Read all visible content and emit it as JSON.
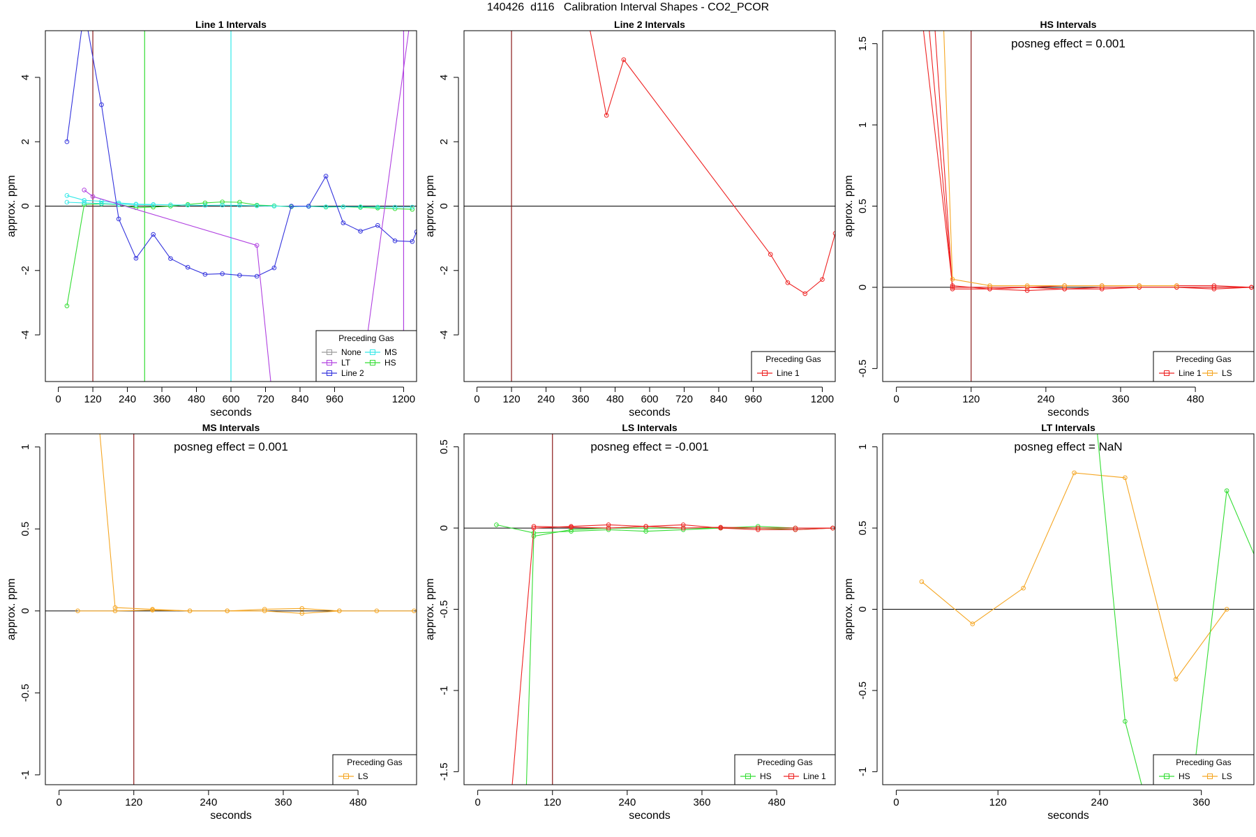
{
  "page": {
    "title": "140426  d116   Calibration Interval Shapes - CO2_PCOR"
  },
  "colors": {
    "None": "#999999",
    "MS": "#33e8e8",
    "LT": "#b040e0",
    "HS": "#33dd33",
    "Line 2": "#3333dd",
    "Line 1": "#ee2222",
    "LS": "#f5a623",
    "ref_line": "#8b1a1a"
  },
  "chart_data": [
    {
      "type": "line",
      "title": "Line 1 Intervals",
      "xlabel": "seconds",
      "ylabel": "approx. ppm",
      "xlim": [
        -45,
        1245
      ],
      "ylim": [
        -5.45,
        5.45
      ],
      "xticks": [
        0,
        120,
        240,
        360,
        480,
        600,
        720,
        840,
        960,
        1200
      ],
      "yticks": [
        -4,
        -2,
        0,
        2,
        4
      ],
      "vlines": [
        {
          "x": 120,
          "color": "#8b1a1a"
        },
        {
          "x": 300,
          "color": "#33dd33"
        },
        {
          "x": 600,
          "color": "#33e8e8"
        },
        {
          "x": 1200,
          "color": "#b040e0"
        }
      ],
      "annotation": "",
      "legend": {
        "title": "Preceding Gas",
        "position": "bottom-right",
        "columns": 2,
        "entries": [
          "None",
          "MS",
          "LT",
          "HS",
          "Line 2"
        ]
      },
      "series": [
        {
          "name": "HS",
          "color": "#33dd33",
          "x": [
            30,
            90,
            150,
            210,
            270,
            330,
            390,
            450,
            510,
            570,
            630,
            690,
            750,
            810,
            870,
            930,
            990,
            1050,
            1110,
            1170,
            1230
          ],
          "y": [
            -3.1,
            0.05,
            0.07,
            0.05,
            -0.05,
            -0.03,
            0.0,
            0.05,
            0.1,
            0.13,
            0.12,
            0.03,
            0.01,
            -0.02,
            0.0,
            -0.03,
            -0.02,
            -0.04,
            -0.06,
            -0.08,
            -0.1
          ]
        },
        {
          "name": "MS",
          "color": "#33e8e8",
          "x": [
            30,
            90,
            150,
            210,
            270,
            330,
            390,
            450,
            510,
            570,
            630,
            690,
            750,
            810,
            870,
            930,
            990,
            1050,
            1110,
            1170,
            1230
          ],
          "y": [
            0.33,
            0.18,
            0.15,
            0.1,
            0.06,
            0.05,
            0.04,
            0.03,
            0.02,
            0.03,
            0.02,
            0.01,
            0.0,
            -0.01,
            -0.01,
            -0.02,
            -0.02,
            -0.02,
            -0.03,
            -0.03,
            -0.03
          ]
        },
        {
          "name": "MS",
          "color": "#33e8e8",
          "x": [
            30,
            90,
            150,
            210,
            270,
            330
          ],
          "y": [
            0.12,
            0.1,
            0.08,
            0.06,
            0.05,
            0.04
          ]
        },
        {
          "name": "Line 2",
          "color": "#3333dd",
          "x": [
            30,
            90,
            150,
            210,
            270,
            330,
            390,
            450,
            510,
            570,
            630,
            690,
            750,
            810,
            870,
            930,
            990,
            1050,
            1110,
            1170,
            1230,
            1245
          ],
          "y": [
            2.0,
            6.1,
            3.15,
            -0.4,
            -1.62,
            -0.88,
            -1.63,
            -1.9,
            -2.12,
            -2.1,
            -2.15,
            -2.18,
            -1.92,
            0.0,
            0.0,
            0.93,
            -0.52,
            -0.78,
            -0.6,
            -1.08,
            -1.1,
            -0.8
          ]
        },
        {
          "name": "LT",
          "color": "#b040e0",
          "x": [
            90,
            120,
            690,
            740,
            1050,
            1220
          ],
          "y": [
            0.5,
            0.3,
            -1.22,
            -5.6,
            -5.6,
            5.6
          ]
        },
        {
          "name": "LT",
          "color": "#b040e0",
          "x": [
            60,
            90,
            100
          ],
          "y": [
            5.6,
            5.6,
            5.6
          ]
        }
      ]
    },
    {
      "type": "line",
      "title": "Line 2 Intervals",
      "xlabel": "seconds",
      "ylabel": "approx. ppm",
      "xlim": [
        -45,
        1245
      ],
      "ylim": [
        -5.45,
        5.45
      ],
      "xticks": [
        0,
        120,
        240,
        360,
        480,
        600,
        720,
        840,
        960,
        1200
      ],
      "yticks": [
        -4,
        -2,
        0,
        2,
        4
      ],
      "vlines": [
        {
          "x": 120,
          "color": "#8b1a1a"
        }
      ],
      "annotation": "",
      "legend": {
        "title": "Preceding Gas",
        "position": "bottom-right",
        "columns": 1,
        "entries": [
          "Line 1"
        ]
      },
      "series": [
        {
          "name": "Line 1",
          "color": "#ee2222",
          "x": [
            390,
            450,
            510,
            1020,
            1080,
            1140,
            1200,
            1245
          ],
          "y": [
            5.6,
            2.82,
            4.55,
            -1.5,
            -2.38,
            -2.72,
            -2.28,
            -0.85
          ]
        }
      ]
    },
    {
      "type": "line",
      "title": "HS Intervals",
      "xlabel": "seconds",
      "ylabel": "approx. ppm",
      "xlim": [
        -22,
        574
      ],
      "ylim": [
        -0.58,
        1.58
      ],
      "xticks": [
        0,
        120,
        240,
        360,
        480
      ],
      "yticks": [
        -0.5,
        0.0,
        0.5,
        1.0,
        1.5
      ],
      "vlines": [
        {
          "x": 120,
          "color": "#8b1a1a"
        }
      ],
      "annotation": "posneg effect = 0.001",
      "legend": {
        "title": "Preceding Gas",
        "position": "bottom-right",
        "columns": 2,
        "entries": [
          "Line 1",
          "LS"
        ]
      },
      "series": [
        {
          "name": "Line 1",
          "color": "#ee2222",
          "x": [
            40,
            90,
            150,
            210,
            270,
            330,
            390,
            450,
            510,
            570
          ],
          "y": [
            1.7,
            0.01,
            -0.01,
            -0.02,
            -0.01,
            -0.01,
            0.0,
            0.0,
            -0.01,
            0.0
          ]
        },
        {
          "name": "Line 1",
          "color": "#ee2222",
          "x": [
            50,
            90,
            150,
            210,
            270,
            330,
            390,
            450,
            510,
            570
          ],
          "y": [
            1.7,
            0.0,
            0.0,
            0.0,
            0.01,
            0.01,
            0.01,
            0.01,
            0.01,
            0.0
          ]
        },
        {
          "name": "Line 1",
          "color": "#ee2222",
          "x": [
            60,
            90,
            150,
            210,
            270,
            330,
            390,
            450,
            510,
            570
          ],
          "y": [
            1.7,
            -0.01,
            -0.01,
            0.0,
            -0.01,
            0.0,
            0.0,
            0.0,
            0.0,
            0.0
          ]
        },
        {
          "name": "LS",
          "color": "#f5a623",
          "x": [
            75,
            90,
            150,
            210,
            270,
            330,
            390,
            450
          ],
          "y": [
            1.7,
            0.05,
            0.01,
            0.01,
            0.01,
            0.01,
            0.01,
            0.01
          ]
        }
      ]
    },
    {
      "type": "line",
      "title": "MS Intervals",
      "xlabel": "seconds",
      "ylabel": "approx. ppm",
      "xlim": [
        -22,
        574
      ],
      "ylim": [
        -1.06,
        1.08
      ],
      "xticks": [
        0,
        120,
        240,
        360,
        480
      ],
      "yticks": [
        -1.0,
        -0.5,
        0.0,
        0.5,
        1.0
      ],
      "vlines": [
        {
          "x": 120,
          "color": "#8b1a1a"
        }
      ],
      "annotation": "posneg effect = 0.001",
      "legend": {
        "title": "Preceding Gas",
        "position": "bottom-right",
        "columns": 1,
        "entries": [
          "LS"
        ]
      },
      "series": [
        {
          "name": "LS",
          "color": "#f5a623",
          "x": [
            65,
            90,
            150,
            210,
            270,
            330,
            390,
            450
          ],
          "y": [
            1.1,
            0.02,
            0.01,
            0.0,
            0.0,
            0.01,
            0.015,
            0.0
          ]
        },
        {
          "name": "LS",
          "color": "#f5a623",
          "x": [
            30,
            90,
            150,
            210,
            270,
            330,
            390,
            450,
            510,
            570
          ],
          "y": [
            0.0,
            0.0,
            0.005,
            0.0,
            0.0,
            0.0,
            -0.015,
            0.0,
            0.0,
            0.0
          ]
        }
      ]
    },
    {
      "type": "line",
      "title": "LS Intervals",
      "xlabel": "seconds",
      "ylabel": "approx. ppm",
      "xlim": [
        -22,
        574
      ],
      "ylim": [
        -1.58,
        0.58
      ],
      "xticks": [
        0,
        120,
        240,
        360,
        480
      ],
      "yticks": [
        -1.5,
        -1.0,
        -0.5,
        0.0,
        0.5
      ],
      "vlines": [
        {
          "x": 120,
          "color": "#8b1a1a"
        }
      ],
      "annotation": "posneg effect = -0.001",
      "legend": {
        "title": "Preceding Gas",
        "position": "bottom-right",
        "columns": 2,
        "entries": [
          "HS",
          "Line 1"
        ]
      },
      "series": [
        {
          "name": "HS",
          "color": "#33dd33",
          "x": [
            30,
            90,
            150,
            210,
            270,
            330,
            390,
            450,
            510,
            570
          ],
          "y": [
            0.02,
            -0.03,
            -0.02,
            -0.01,
            -0.02,
            -0.01,
            0.0,
            0.0,
            -0.01,
            0.0
          ]
        },
        {
          "name": "HS",
          "color": "#33dd33",
          "x": [
            78,
            90,
            150,
            210,
            270,
            330,
            390,
            450,
            510
          ],
          "y": [
            -1.6,
            -0.05,
            -0.01,
            0.0,
            0.0,
            0.0,
            0.0,
            0.01,
            0.0
          ]
        },
        {
          "name": "Line 1",
          "color": "#ee2222",
          "x": [
            55,
            90,
            150,
            210,
            270,
            330,
            390,
            450,
            510,
            570
          ],
          "y": [
            -1.6,
            0.0,
            0.01,
            0.02,
            0.01,
            0.02,
            0.0,
            -0.01,
            -0.01,
            0.0
          ]
        },
        {
          "name": "Line 1",
          "color": "#ee2222",
          "x": [
            90,
            150,
            210,
            270,
            330,
            390,
            450,
            510,
            570
          ],
          "y": [
            0.01,
            0.005,
            0.0,
            0.01,
            0.0,
            0.005,
            0.0,
            0.0,
            0.0
          ]
        }
      ]
    },
    {
      "type": "line",
      "title": "LT Intervals",
      "xlabel": "seconds",
      "ylabel": "approx. ppm",
      "xlim": [
        -16,
        422
      ],
      "ylim": [
        -1.08,
        1.08
      ],
      "xticks": [
        0,
        120,
        240,
        360
      ],
      "yticks": [
        -1.0,
        -0.5,
        0.0,
        0.5,
        1.0
      ],
      "vlines": [],
      "annotation": "posneg effect = NaN",
      "legend": {
        "title": "Preceding Gas",
        "position": "bottom-right",
        "columns": 2,
        "entries": [
          "HS",
          "LS"
        ]
      },
      "series": [
        {
          "name": "LS",
          "color": "#f5a623",
          "x": [
            30,
            90,
            150,
            210,
            270,
            330,
            390
          ],
          "y": [
            0.17,
            -0.09,
            0.13,
            0.84,
            0.81,
            -0.43,
            0.0
          ]
        },
        {
          "name": "HS",
          "color": "#33dd33",
          "x": [
            236,
            270,
            293
          ],
          "y": [
            1.15,
            -0.69,
            -1.15
          ]
        },
        {
          "name": "HS",
          "color": "#33dd33",
          "x": [
            348,
            390,
            450
          ],
          "y": [
            -1.15,
            0.73,
            0.0
          ]
        }
      ]
    }
  ]
}
